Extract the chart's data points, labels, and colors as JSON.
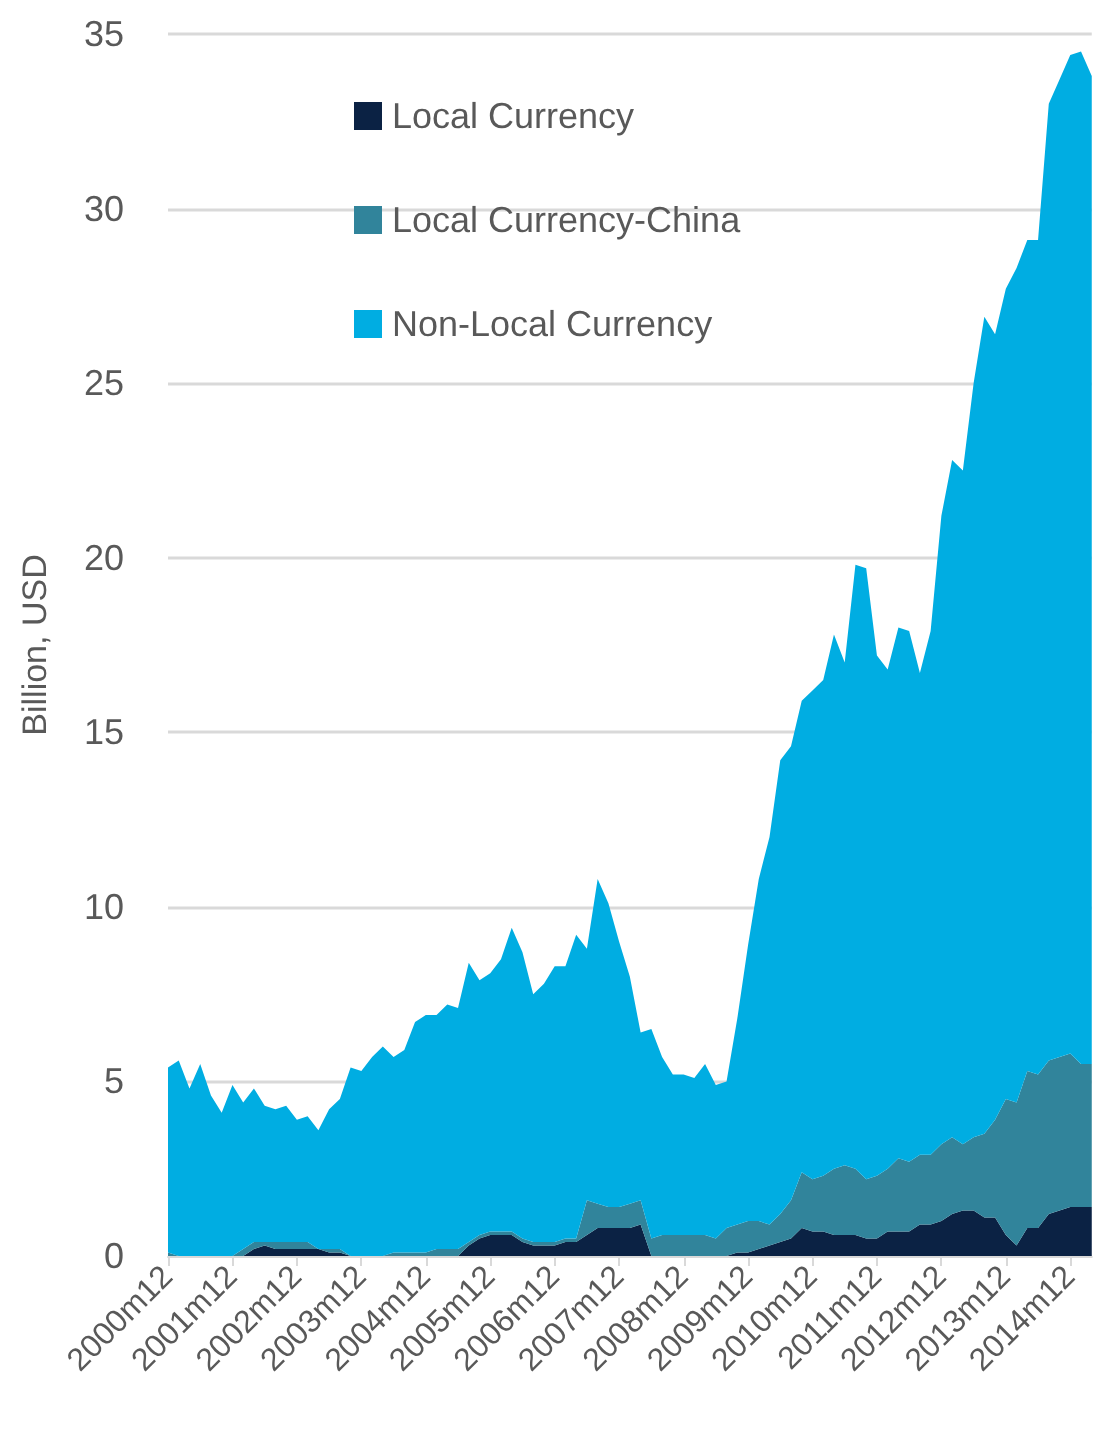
{
  "chart_data": {
    "type": "area",
    "stacked": true,
    "ylabel": "Billion, USD",
    "categories": [
      "2000m12",
      null,
      null,
      null,
      null,
      null,
      "2001m12",
      null,
      null,
      null,
      null,
      null,
      "2002m12",
      null,
      null,
      null,
      null,
      null,
      "2003m12",
      null,
      null,
      null,
      null,
      null,
      "2004m12",
      null,
      null,
      null,
      null,
      null,
      "2005m12",
      null,
      null,
      null,
      null,
      null,
      "2006m12",
      null,
      null,
      null,
      null,
      null,
      "2007m12",
      null,
      null,
      null,
      null,
      null,
      "2008m12",
      null,
      null,
      null,
      null,
      null,
      "2009m12",
      null,
      null,
      null,
      null,
      null,
      "2010m12",
      null,
      null,
      null,
      null,
      null,
      "2011m12",
      null,
      null,
      null,
      null,
      null,
      "2012m12",
      null,
      null,
      null,
      null,
      null,
      "2013m12",
      null,
      null,
      null,
      null,
      null,
      "2014m12",
      null,
      null
    ],
    "series": [
      {
        "name": "Local Currency",
        "color": "#0b2244",
        "values": [
          0,
          0,
          0,
          0,
          0,
          0,
          0,
          0,
          0.2,
          0.3,
          0.2,
          0.2,
          0.2,
          0.2,
          0.2,
          0.1,
          0.1,
          0,
          0,
          0,
          0,
          0,
          0,
          0,
          0,
          0,
          0,
          0,
          0.3,
          0.5,
          0.6,
          0.6,
          0.6,
          0.4,
          0.3,
          0.3,
          0.3,
          0.4,
          0.4,
          0.6,
          0.8,
          0.8,
          0.8,
          0.8,
          0.9,
          0,
          0,
          0,
          0,
          0,
          0,
          0,
          0,
          0.1,
          0.1,
          0.2,
          0.3,
          0.4,
          0.5,
          0.8,
          0.7,
          0.7,
          0.6,
          0.6,
          0.6,
          0.5,
          0.5,
          0.7,
          0.7,
          0.7,
          0.9,
          0.9,
          1.0,
          1.2,
          1.3,
          1.3,
          1.1,
          1.1,
          0.6,
          0.3,
          0.8,
          0.8,
          1.2,
          1.3,
          1.4,
          1.4,
          1.4
        ]
      },
      {
        "name": "Local Currency-China",
        "color": "#31849b",
        "values": [
          0.1,
          0,
          0,
          0,
          0,
          0,
          0,
          0.2,
          0.2,
          0.1,
          0.2,
          0.2,
          0.2,
          0.2,
          0,
          0.1,
          0.1,
          0,
          0,
          0,
          0,
          0.1,
          0.1,
          0.1,
          0.1,
          0.2,
          0.2,
          0.2,
          0.1,
          0.1,
          0.1,
          0.1,
          0.1,
          0.1,
          0.1,
          0.1,
          0.1,
          0.1,
          0.1,
          1.0,
          0.7,
          0.6,
          0.6,
          0.7,
          0.7,
          0.5,
          0.6,
          0.6,
          0.6,
          0.6,
          0.6,
          0.5,
          0.8,
          0.8,
          0.9,
          0.8,
          0.6,
          0.8,
          1.1,
          1.6,
          1.5,
          1.6,
          1.9,
          2.0,
          1.9,
          1.7,
          1.8,
          1.8,
          2.1,
          2.0,
          2.0,
          2.0,
          2.2,
          2.2,
          1.9,
          2.1,
          2.4,
          2.8,
          3.9,
          4.1,
          4.5,
          4.4,
          4.4,
          4.4,
          4.4,
          4.1,
          4.1
        ]
      },
      {
        "name": "Non-Local Currency",
        "color": "#00ade2",
        "values": [
          5.3,
          5.6,
          4.8,
          5.5,
          4.6,
          4.1,
          4.9,
          4.2,
          4.4,
          3.9,
          3.8,
          3.9,
          3.5,
          3.6,
          3.4,
          4.0,
          4.3,
          5.4,
          5.3,
          5.7,
          6.0,
          5.6,
          5.8,
          6.6,
          6.8,
          6.7,
          7.0,
          6.9,
          8.0,
          7.3,
          7.4,
          7.8,
          8.7,
          8.2,
          7.1,
          7.4,
          7.9,
          7.8,
          8.7,
          7.2,
          9.3,
          8.7,
          7.6,
          6.5,
          4.8,
          6.0,
          5.1,
          4.6,
          4.6,
          4.5,
          4.9,
          4.4,
          4.2,
          5.9,
          7.9,
          9.8,
          11.1,
          13.0,
          13.0,
          13.5,
          14.0,
          14.2,
          15.3,
          14.4,
          17.3,
          17.5,
          14.9,
          14.3,
          15.2,
          15.2,
          13.8,
          15.0,
          18.0,
          19.4,
          19.3,
          21.6,
          23.4,
          22.5,
          23.2,
          23.9,
          23.8,
          23.9,
          27.4,
          28.0,
          28.6,
          29.0,
          28.3
        ]
      }
    ],
    "ylim": [
      0,
      35
    ],
    "yticks": [
      0,
      5,
      10,
      15,
      20,
      25,
      30,
      35
    ],
    "grid": "y",
    "legend": "top left",
    "marker": "none"
  }
}
